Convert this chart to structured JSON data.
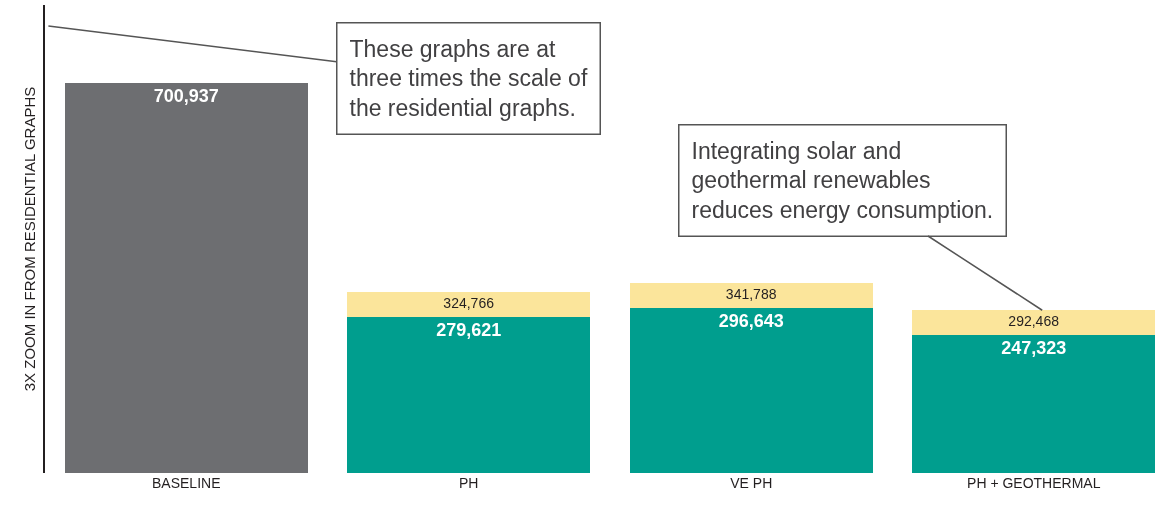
{
  "chart_data": {
    "type": "bar",
    "stacked": true,
    "ylabel": "3X ZOOM IN FROM RESIDENTIAL GRAPHS",
    "categories": [
      "BASELINE",
      "PH",
      "VE PH",
      "PH + GEOTHERMAL"
    ],
    "series": [
      {
        "color": "#6d6e71",
        "values": [
          700937,
          null,
          null,
          null
        ],
        "value_labels": [
          "700,937",
          null,
          null,
          null
        ]
      },
      {
        "color": "#009e8e",
        "values": [
          null,
          279621,
          296643,
          247323
        ],
        "value_labels": [
          null,
          "279,621",
          "296,643",
          "247,323"
        ]
      },
      {
        "color": "#fbe59b",
        "values": [
          null,
          45145,
          45145,
          45145
        ],
        "value_labels": [
          null,
          null,
          null,
          null
        ]
      }
    ],
    "totals": [
      null,
      "324,766",
      "341,788",
      "292,468"
    ],
    "ylim": [
      0,
      841000
    ],
    "tick_labels": "x",
    "annotations": [
      "These graphs are at three times the scale of the residential graphs.",
      {
        "text": "Integrating solar and geothermal renewables reduces energy consumption.",
        "x": "PH + GEOTHERMAL",
        "y": 292468
      }
    ]
  }
}
